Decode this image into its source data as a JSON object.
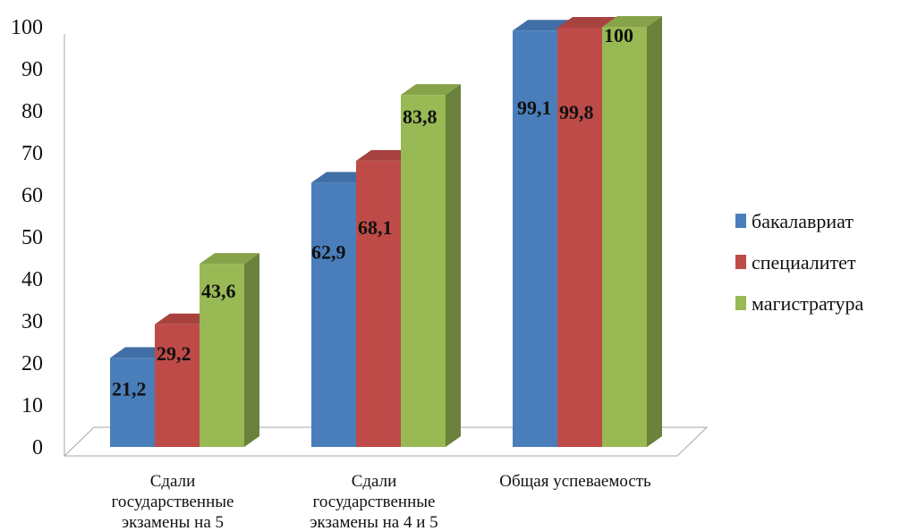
{
  "chart_data": {
    "type": "bar",
    "categories": [
      [
        "Сдали",
        "государственные",
        "экзамены на  5"
      ],
      [
        "Сдали",
        "государственные",
        "экзамены на 4 и 5"
      ],
      [
        "Общая успеваемость"
      ]
    ],
    "series": [
      {
        "name": "бакалавриат",
        "color": "#4a7ebb",
        "values": [
          21.2,
          62.9,
          99.1
        ],
        "labels": [
          "21,2",
          "62,9",
          "99,1"
        ]
      },
      {
        "name": "специалитет",
        "color": "#be4b48",
        "values": [
          29.2,
          68.1,
          99.8
        ],
        "labels": [
          "29,2",
          "68,1",
          "99,8"
        ]
      },
      {
        "name": "магистратура",
        "color": "#98b954",
        "values": [
          43.6,
          83.8,
          100
        ],
        "labels": [
          "43,6",
          "83,8",
          "100"
        ]
      }
    ],
    "ylim": [
      0,
      100
    ],
    "yticks": [
      0,
      10,
      20,
      30,
      40,
      50,
      60,
      70,
      80,
      90,
      100
    ],
    "grid": false,
    "legend_position": "right",
    "style": "3d-clustered-column"
  }
}
